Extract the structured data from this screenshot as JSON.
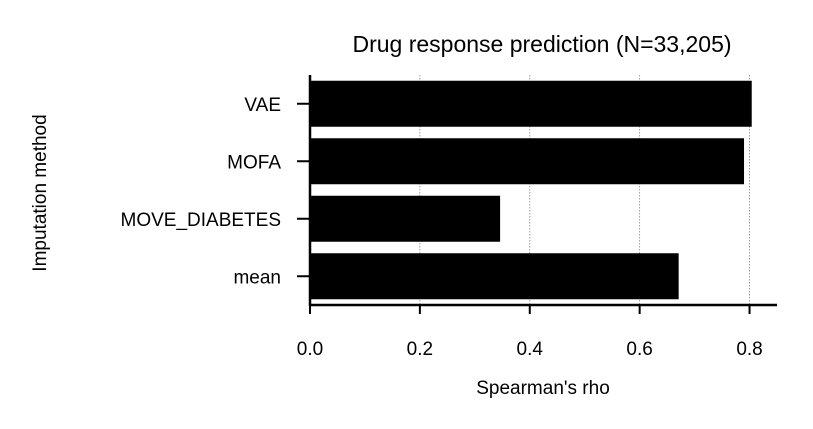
{
  "chart_data": {
    "type": "bar",
    "orientation": "horizontal",
    "title": "Drug response prediction (N=33,205)",
    "xlabel": "Spearman's rho",
    "ylabel": "Imputation method",
    "categories": [
      "VAE",
      "MOFA",
      "MOVE_DIABETES",
      "mean"
    ],
    "values": [
      0.804,
      0.79,
      0.346,
      0.671
    ],
    "xlim": [
      0.0,
      0.85
    ],
    "xticks": [
      "0.0",
      "0.2",
      "0.4",
      "0.6",
      "0.8"
    ],
    "xtick_values": [
      0.0,
      0.2,
      0.4,
      0.6,
      0.8
    ],
    "grid": "x, dotted",
    "bar_color": "#000000"
  }
}
